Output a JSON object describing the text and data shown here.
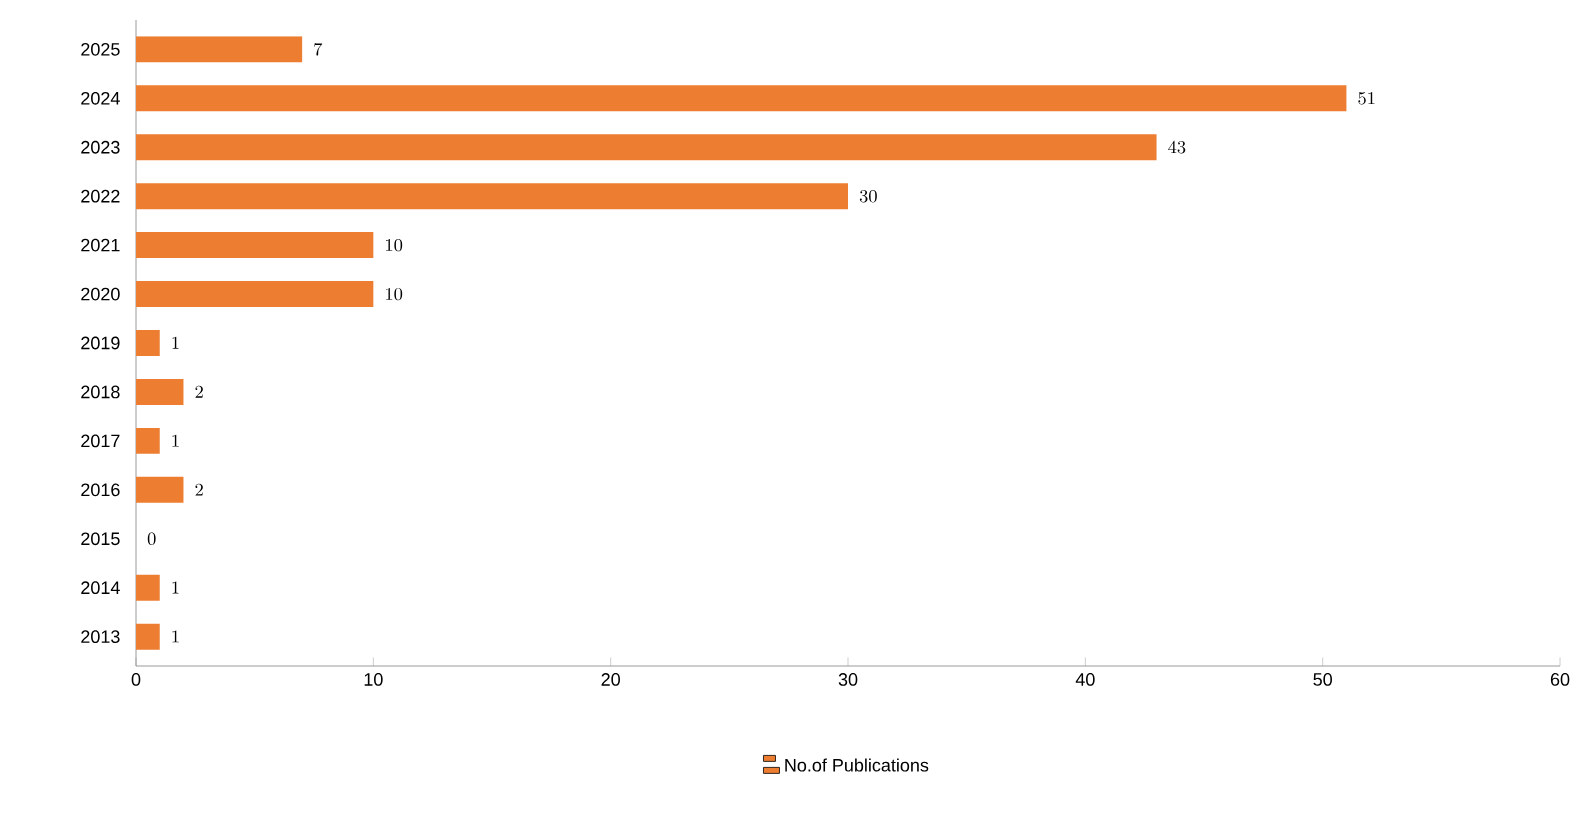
{
  "chart_data": {
    "type": "bar",
    "orientation": "horizontal",
    "categories": [
      "2025",
      "2024",
      "2023",
      "2022",
      "2021",
      "2020",
      "2019",
      "2018",
      "2017",
      "2016",
      "2015",
      "2014",
      "2013"
    ],
    "series": [
      {
        "name": "No.of Publications",
        "color": "#ed7d31",
        "values": [
          7,
          51,
          43,
          30,
          10,
          10,
          1,
          2,
          1,
          2,
          0,
          1,
          1
        ]
      }
    ],
    "xlim": [
      0,
      60
    ],
    "xticks": [
      0,
      10,
      20,
      30,
      40,
      50,
      60
    ],
    "data_labels": true,
    "legend": "bottom",
    "grid": false
  }
}
